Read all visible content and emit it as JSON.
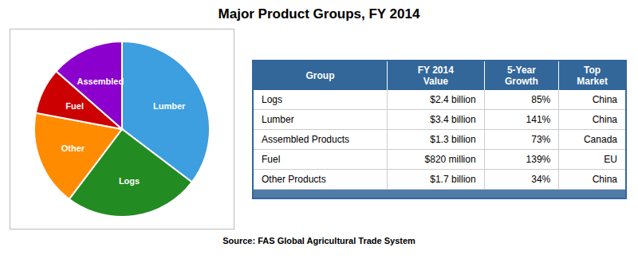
{
  "chart_data": [
    {
      "type": "pie",
      "title": "Major Product Groups, FY 2014",
      "source": "Source: FAS Global Agricultural Trade System",
      "categories": [
        "Lumber",
        "Logs",
        "Other",
        "Fuel",
        "Assembled"
      ],
      "values": [
        3.4,
        2.4,
        1.7,
        0.82,
        1.3
      ],
      "colors": [
        "#3D9EE0",
        "#228B22",
        "#FF8C00",
        "#CC0000",
        "#8B00CC"
      ]
    },
    {
      "type": "table",
      "columns": [
        "Group",
        "FY 2014\nValue",
        "5-Year\nGrowth",
        "Top\nMarket"
      ],
      "rows": [
        [
          "Logs",
          "$2.4 billion",
          "85%",
          "China"
        ],
        [
          "Lumber",
          "$3.4 billion",
          "141%",
          "China"
        ],
        [
          "Assembled Products",
          "$1.3 billion",
          "73%",
          "Canada"
        ],
        [
          "Fuel",
          "$820 million",
          "139%",
          "EU"
        ],
        [
          "Other Products",
          "$1.7 billion",
          "34%",
          "China"
        ]
      ],
      "color": "#336699"
    }
  ]
}
